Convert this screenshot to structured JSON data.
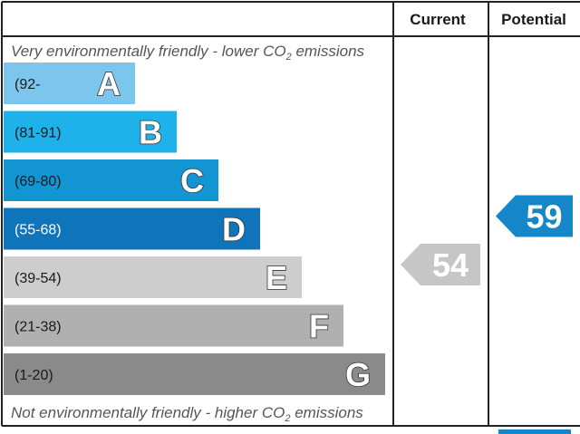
{
  "chart_data": {
    "type": "bar",
    "columns": {
      "current": "Current",
      "potential": "Potential"
    },
    "top_note": {
      "text": "Very environmentally friendly - lower CO",
      "sub": "2",
      "tail": " emissions"
    },
    "bottom_note": {
      "text": "Not environmentally friendly - higher CO",
      "sub": "2",
      "tail": " emissions"
    },
    "bands": [
      {
        "letter": "A",
        "range": "(92-",
        "color": "#7cc6ee"
      },
      {
        "letter": "B",
        "range": "(81-91)",
        "color": "#1fb1ea"
      },
      {
        "letter": "C",
        "range": "(69-80)",
        "color": "#1495d3"
      },
      {
        "letter": "D",
        "range": "(55-68)",
        "color": "#0f74ba"
      },
      {
        "letter": "E",
        "range": "(39-54)",
        "color": "#cdcdcd"
      },
      {
        "letter": "F",
        "range": "(21-38)",
        "color": "#b0b0b0"
      },
      {
        "letter": "G",
        "range": "(1-20)",
        "color": "#8a8a8a"
      }
    ],
    "ratings": {
      "current": {
        "value": 54,
        "band": "E",
        "color": "#c6c6c6"
      },
      "potential": {
        "value": 59,
        "band": "D",
        "color": "#1586c8"
      }
    }
  }
}
